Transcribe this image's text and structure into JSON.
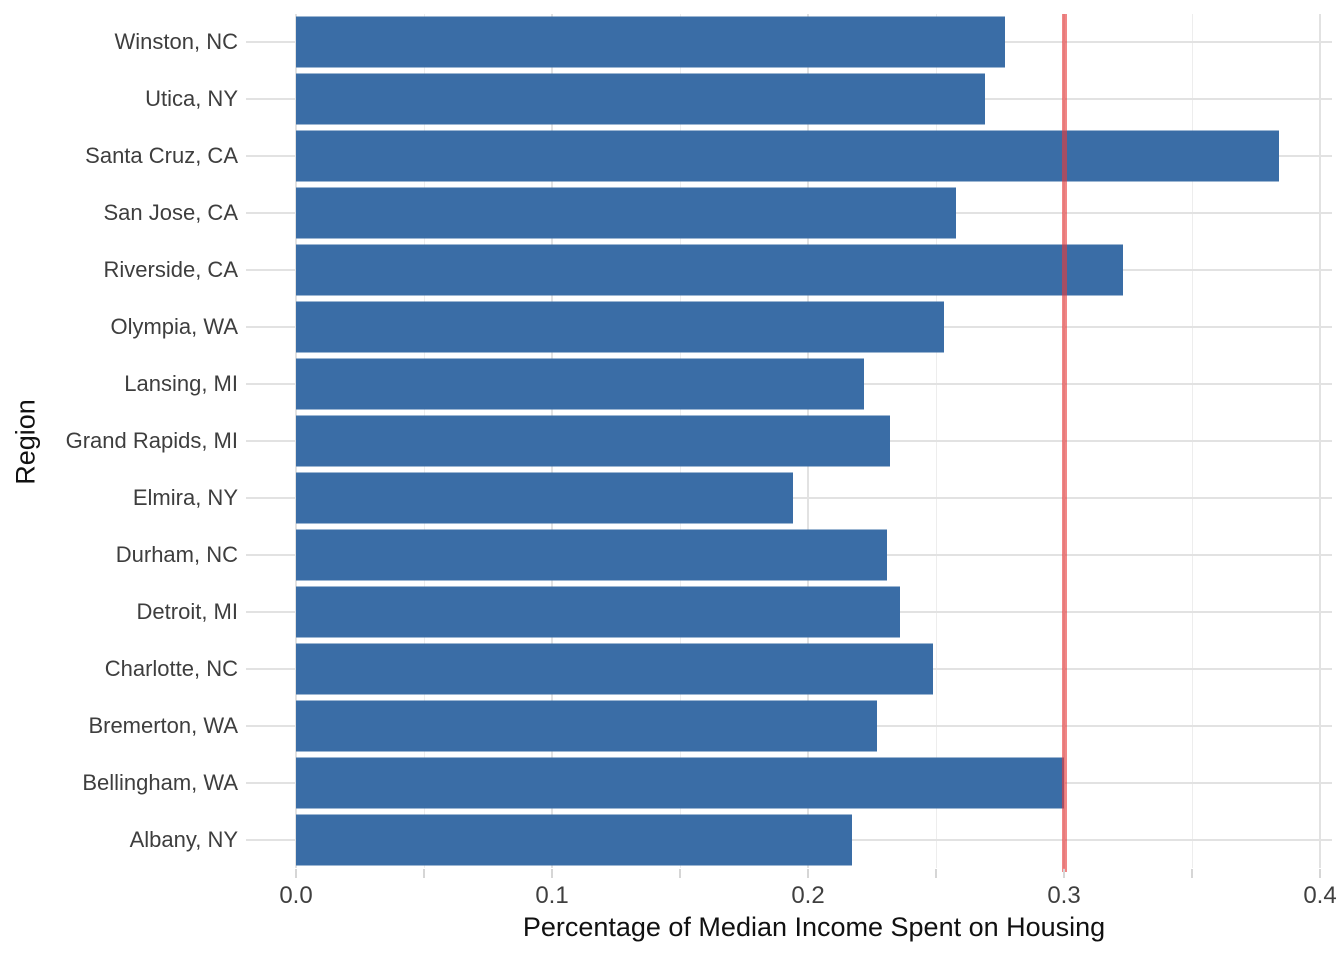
{
  "chart_data": {
    "type": "bar",
    "orientation": "horizontal",
    "xlabel": "Percentage of Median Income Spent on Housing",
    "ylabel": "Region",
    "categories_top_to_bottom": [
      "Winston, NC",
      "Utica, NY",
      "Santa Cruz, CA",
      "San Jose, CA",
      "Riverside, CA",
      "Olympia, WA",
      "Lansing, MI",
      "Grand Rapids, MI",
      "Elmira, NY",
      "Durham, NC",
      "Detroit, MI",
      "Charlotte, NC",
      "Bremerton, WA",
      "Bellingham, WA",
      "Albany, NY"
    ],
    "values": [
      0.277,
      0.269,
      0.384,
      0.258,
      0.323,
      0.253,
      0.222,
      0.232,
      0.194,
      0.231,
      0.236,
      0.249,
      0.227,
      0.3,
      0.217
    ],
    "x_ticks": [
      "0.0",
      "0.1",
      "0.2",
      "0.3",
      "0.4"
    ],
    "x_tick_values": [
      0.0,
      0.1,
      0.2,
      0.3,
      0.4
    ],
    "x_minor_step": 0.05,
    "xlim": [
      0.0,
      0.405
    ],
    "grid": "on",
    "legend": "none",
    "reference_line": {
      "value": 0.3,
      "color": "#e83c3c",
      "opacity": 0.62
    },
    "bar_color": "#3a6da6",
    "grid_major_color": "#e2e2e2",
    "grid_minor_color": "#ededed"
  }
}
